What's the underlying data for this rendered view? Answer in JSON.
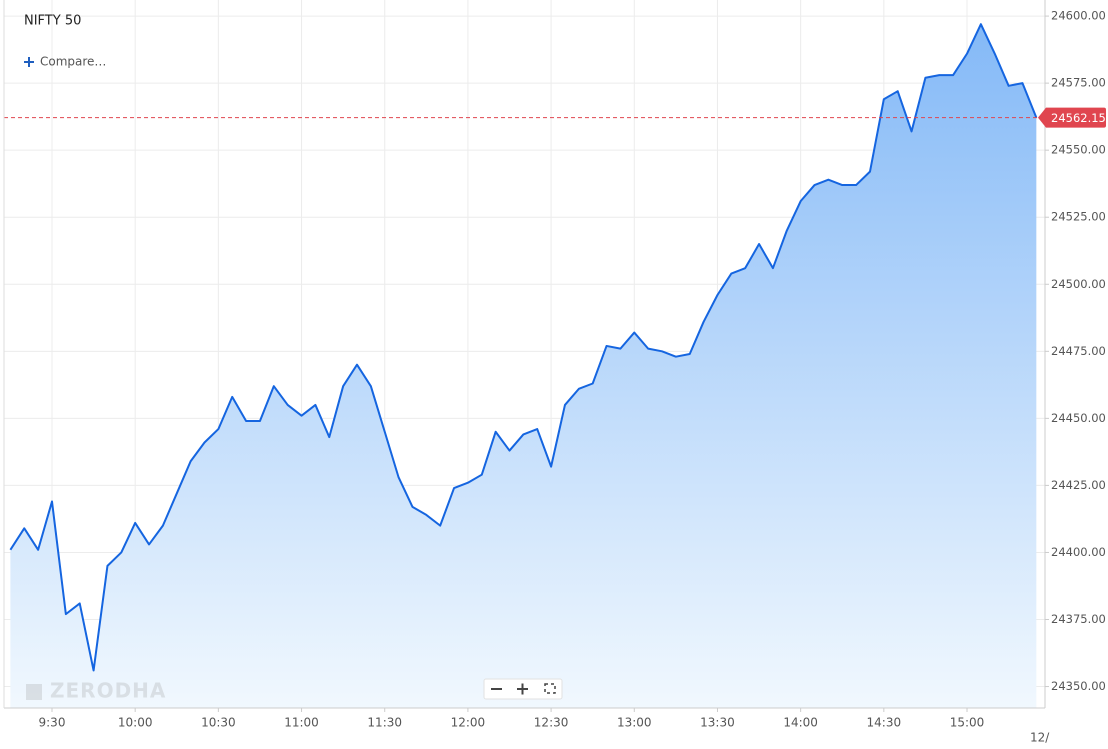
{
  "chart_data": {
    "type": "area",
    "title": "NIFTY 50",
    "compare_label": "Compare…",
    "watermark": "ZERODHA",
    "date_label": "12/",
    "color": "#1565e0",
    "fill_top": "#84b9f7",
    "fill_bottom": "#f1f8fe",
    "last_price_color": "#e0454f",
    "categories": [
      null,
      null,
      null,
      "9:30",
      null,
      null,
      null,
      null,
      null,
      "10:00",
      null,
      null,
      null,
      null,
      null,
      "10:30",
      null,
      null,
      null,
      null,
      null,
      "11:00",
      null,
      null,
      null,
      null,
      null,
      "11:30",
      null,
      null,
      null,
      null,
      null,
      "12:00",
      null,
      null,
      null,
      null,
      null,
      "12:30",
      null,
      null,
      null,
      null,
      null,
      "13:00",
      null,
      null,
      null,
      null,
      null,
      "13:30",
      null,
      null,
      null,
      null,
      null,
      "14:00",
      null,
      null,
      null,
      null,
      null,
      "14:30",
      null,
      null,
      null,
      null,
      null,
      "15:00",
      null,
      null,
      null,
      null,
      null
    ],
    "values": [
      24401,
      24409,
      24401,
      24419,
      24377,
      24381,
      24356,
      24395,
      24400,
      24411,
      24403,
      24410,
      24422,
      24434,
      24441,
      24446,
      24458,
      24449,
      24449,
      24462,
      24455,
      24451,
      24455,
      24443,
      24462,
      24470,
      24462,
      24445,
      24428,
      24417,
      24414,
      24410,
      24424,
      24426,
      24429,
      24445,
      24438,
      24444,
      24446,
      24432,
      24455,
      24461,
      24463,
      24477,
      24476,
      24482,
      24476,
      24475,
      24473,
      24474,
      24486,
      24496,
      24504,
      24506,
      24515,
      24506,
      24520,
      24531,
      24537,
      24539,
      24537,
      24537,
      24542,
      24569,
      24572,
      24557,
      24577,
      24578,
      24578,
      24586,
      24597,
      24586,
      24574,
      24575,
      24562.15
    ],
    "ylim": [
      24342,
      24606
    ],
    "yticks": [
      {
        "value": 24350,
        "label": "24350.00"
      },
      {
        "value": 24375,
        "label": "24375.00"
      },
      {
        "value": 24400,
        "label": "24400.00"
      },
      {
        "value": 24425,
        "label": "24425.00"
      },
      {
        "value": 24450,
        "label": "24450.00"
      },
      {
        "value": 24475,
        "label": "24475.00"
      },
      {
        "value": 24500,
        "label": "24500.00"
      },
      {
        "value": 24525,
        "label": "24525.00"
      },
      {
        "value": 24550,
        "label": "24550.00"
      },
      {
        "value": 24575,
        "label": "24575.00"
      },
      {
        "value": 24600,
        "label": "24600.00"
      }
    ],
    "grid": true
  }
}
